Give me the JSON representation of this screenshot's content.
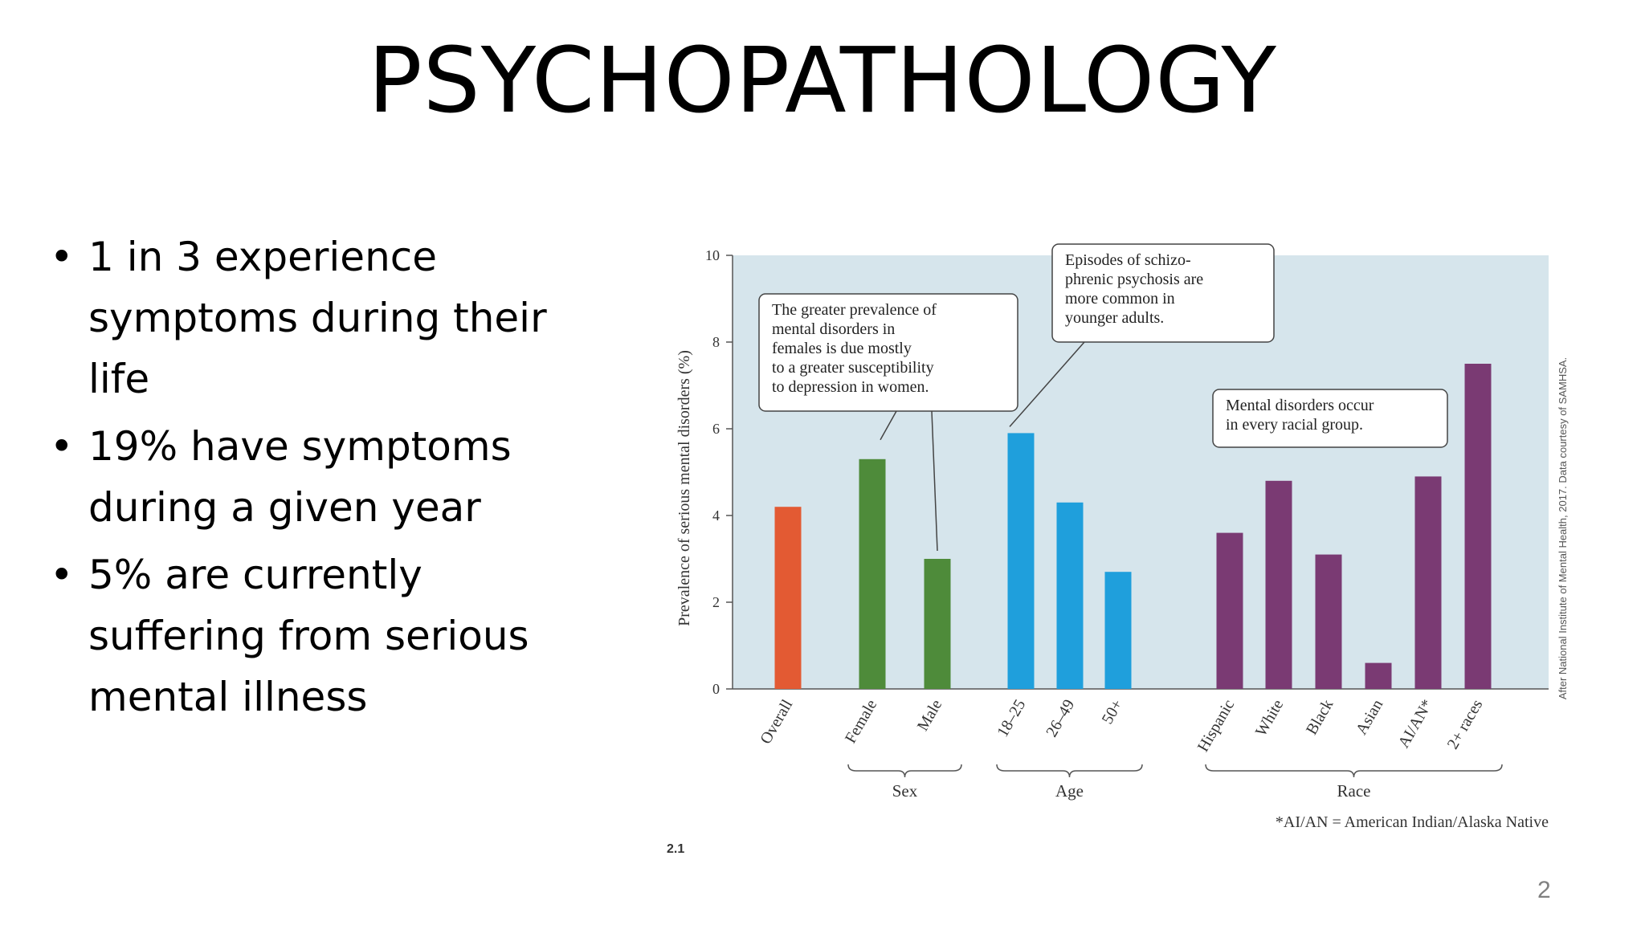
{
  "slide": {
    "title": "PSYCHOPATHOLOGY",
    "bullets": [
      "1 in 3 experience symptoms during their life",
      "19% have symptoms during a given year",
      "5% are currently suffering from serious mental illness"
    ],
    "bullet_glyph": "•",
    "page_number": "2"
  },
  "chart_data": {
    "type": "bar",
    "figure_label": "2.1",
    "ylabel": "Prevalence of serious mental disorders (%)",
    "ylim": [
      0,
      10
    ],
    "yticks": [
      "0",
      "2",
      "4",
      "6",
      "8",
      "10"
    ],
    "categories": [
      "Overall",
      "Female",
      "Male",
      "18–25",
      "26–49",
      "50+",
      "Hispanic",
      "White",
      "Black",
      "Asian",
      "AI/AN*",
      "2+ races"
    ],
    "values": [
      4.2,
      5.3,
      3.0,
      5.9,
      4.3,
      2.7,
      3.6,
      4.8,
      3.1,
      0.6,
      4.9,
      7.5
    ],
    "bar_colors": [
      "#e35a33",
      "#4e8b3a",
      "#4e8b3a",
      "#1f9fdc",
      "#1f9fdc",
      "#1f9fdc",
      "#7a3a73",
      "#7a3a73",
      "#7a3a73",
      "#7a3a73",
      "#7a3a73",
      "#7a3a73"
    ],
    "groups": [
      {
        "label": "Sex",
        "members": [
          "Female",
          "Male"
        ]
      },
      {
        "label": "Age",
        "members": [
          "18–25",
          "26–49",
          "50+"
        ]
      },
      {
        "label": "Race",
        "members": [
          "Hispanic",
          "White",
          "Black",
          "Asian",
          "AI/AN*",
          "2+ races"
        ]
      }
    ],
    "annotations": [
      {
        "lines": [
          "The greater prevalence of",
          "mental disorders in",
          "females is due mostly",
          "to a greater susceptibility",
          "to depression in women."
        ],
        "targets": [
          "Female",
          "Male"
        ]
      },
      {
        "lines": [
          "Episodes of schizo-",
          "phrenic psychosis are",
          "more common in",
          "younger adults."
        ],
        "targets": [
          "18–25"
        ]
      },
      {
        "lines": [
          "Mental disorders occur",
          "in every racial group."
        ],
        "targets": []
      }
    ],
    "footnote": "*AI/AN = American Indian/Alaska Native",
    "source": "After National Institute of Mental Health, 2017. Data courtesy of SAMHSA.",
    "plot_background": "#d6e5ec",
    "grid": false
  }
}
